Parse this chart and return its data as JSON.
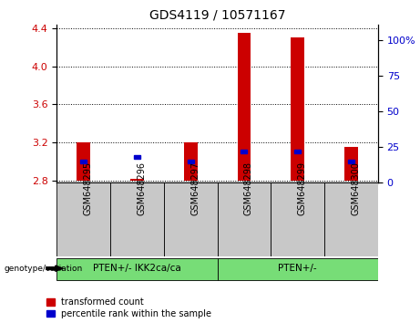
{
  "title": "GDS4119 / 10571167",
  "samples": [
    "GSM648295",
    "GSM648296",
    "GSM648297",
    "GSM648298",
    "GSM648299",
    "GSM648300"
  ],
  "transformed_count": [
    3.2,
    2.82,
    3.2,
    4.35,
    4.3,
    3.15
  ],
  "percentile_rank": [
    15,
    18,
    15,
    22,
    22,
    15
  ],
  "baseline": 2.8,
  "ylim_left": [
    2.78,
    4.44
  ],
  "yticks_left": [
    2.8,
    3.2,
    3.6,
    4.0,
    4.4
  ],
  "yticks_right": [
    0,
    25,
    50,
    75,
    100
  ],
  "ylim_right": [
    0,
    111.11
  ],
  "groups": [
    {
      "label": "PTEN+/- IKK2ca/ca",
      "samples": [
        0,
        1,
        2
      ]
    },
    {
      "label": "PTEN+/-",
      "samples": [
        3,
        4,
        5
      ]
    }
  ],
  "group_label_prefix": "genotype/variation",
  "bar_color_red": "#CC0000",
  "bar_color_blue": "#0000CC",
  "background_label": "#C8C8C8",
  "background_group": "#77DD77",
  "left_axis_color": "#CC0000",
  "right_axis_color": "#0000CC",
  "legend_items": [
    "transformed count",
    "percentile rank within the sample"
  ],
  "bar_width": 0.25
}
